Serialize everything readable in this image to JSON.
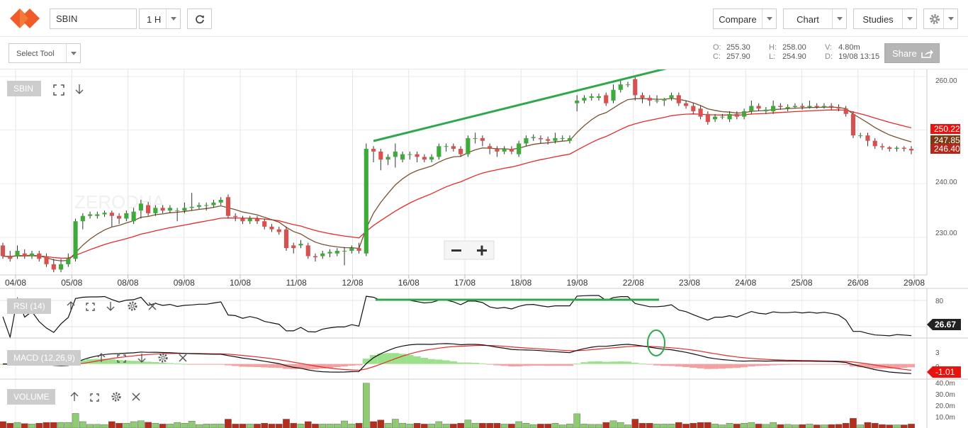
{
  "header": {
    "symbol": "SBIN",
    "interval": "1 H",
    "compare_label": "Compare",
    "chart_label": "Chart",
    "studies_label": "Studies",
    "logo_colors": [
      "#f15a29",
      "#fbb040"
    ]
  },
  "toolbar": {
    "select_tool_label": "Select Tool",
    "share_label": "Share"
  },
  "ohlc": {
    "o_key": "O:",
    "o": "255.30",
    "c_key": "C:",
    "c": "257.90",
    "h_key": "H:",
    "h": "258.00",
    "l_key": "L:",
    "l": "254.90",
    "v_key": "V:",
    "v": "4.80m",
    "d_key": "D:",
    "d": "19/08 13:15"
  },
  "chart_labels": {
    "main_symbol": "SBIN",
    "watermark": "ZERODHA",
    "rsi_label": "RSI (14)",
    "macd_label": "MACD (12,26,9)",
    "volume_label": "VOLUME"
  },
  "colors": {
    "up": "#3daa3a",
    "down": "#d8514e",
    "ema_slow": "#e52b2b",
    "ema_fast": "#7a5230",
    "trendline": "#2ea84a",
    "rsi_badge": "#222222",
    "macd_badge": "#e8130e",
    "vol_up": "#8ecb73",
    "vol_down": "#b52d1b"
  },
  "chart_data": {
    "type": "candlestick",
    "price_axis": {
      "ticks": [
        "260.00",
        "240.00",
        "230.00"
      ],
      "ylim": [
        223,
        261.3
      ]
    },
    "price_badges": [
      "250.22",
      "247.85",
      "246.40"
    ],
    "x_labels": [
      "04/08",
      "05/08",
      "08/08",
      "09/08",
      "10/08",
      "11/08",
      "12/08",
      "16/08",
      "17/08",
      "18/08",
      "19/08",
      "22/08",
      "23/08",
      "24/08",
      "25/08",
      "26/08",
      "29/08"
    ],
    "candles": [
      [
        228.5,
        226.5,
        229.0,
        226.0
      ],
      [
        226.5,
        226.0,
        227.5,
        225.5
      ],
      [
        226.5,
        227.5,
        228.5,
        226.0
      ],
      [
        227.0,
        226.5,
        227.8,
        226.0
      ],
      [
        226.5,
        227.0,
        227.5,
        226.0
      ],
      [
        227.0,
        226.0,
        227.5,
        225.5
      ],
      [
        226.5,
        225.0,
        227.0,
        224.5
      ],
      [
        225.0,
        224.0,
        226.0,
        223.5
      ],
      [
        224.0,
        225.0,
        226.0,
        223.5
      ],
      [
        225.0,
        226.0,
        227.0,
        224.5
      ],
      [
        226.0,
        233.0,
        233.5,
        225.5
      ],
      [
        233.0,
        234.0,
        234.5,
        231.5
      ],
      [
        234.0,
        234.3,
        234.8,
        233.5
      ],
      [
        234.0,
        234.3,
        234.8,
        233.5
      ],
      [
        234.3,
        234.6,
        235.0,
        233.8
      ],
      [
        234.6,
        234.0,
        235.0,
        232.0
      ],
      [
        234.0,
        233.5,
        234.5,
        232.5
      ],
      [
        233.5,
        234.5,
        235.0,
        233.0
      ],
      [
        233.0,
        234.8,
        235.5,
        232.5
      ],
      [
        235.0,
        236.3,
        237.0,
        233.5
      ],
      [
        236.0,
        234.5,
        236.6,
        234.0
      ],
      [
        234.5,
        235.5,
        236.0,
        234.0
      ],
      [
        235.5,
        235.0,
        236.0,
        234.5
      ],
      [
        235.0,
        235.5,
        236.0,
        234.5
      ],
      [
        235.0,
        235.0,
        235.5,
        233.0
      ],
      [
        235.0,
        235.5,
        236.5,
        234.5
      ],
      [
        235.5,
        235.7,
        238.3,
        235.0
      ],
      [
        235.7,
        236.0,
        236.5,
        235.3
      ],
      [
        236.0,
        236.0,
        236.5,
        235.0
      ],
      [
        236.0,
        236.5,
        237.0,
        235.5
      ],
      [
        236.5,
        237.0,
        237.5,
        236.0
      ],
      [
        237.5,
        234.0,
        238.0,
        233.5
      ],
      [
        234.0,
        233.8,
        234.5,
        233.0
      ],
      [
        233.5,
        233.0,
        234.0,
        232.5
      ],
      [
        233.0,
        233.5,
        234.0,
        232.5
      ],
      [
        233.5,
        233.0,
        234.0,
        232.5
      ],
      [
        233.0,
        232.0,
        233.5,
        231.5
      ],
      [
        232.0,
        231.5,
        232.5,
        231.0
      ],
      [
        231.5,
        231.0,
        232.0,
        230.5
      ],
      [
        231.5,
        228.0,
        232.0,
        227.5
      ],
      [
        228.5,
        228.0,
        229.0,
        227.0
      ],
      [
        228.5,
        228.8,
        229.5,
        228.0
      ],
      [
        228.5,
        226.5,
        229.0,
        226.0
      ],
      [
        226.5,
        226.3,
        227.0,
        225.5
      ],
      [
        226.5,
        227.0,
        227.5,
        226.0
      ],
      [
        227.0,
        227.3,
        227.8,
        226.3
      ],
      [
        227.0,
        227.5,
        228.0,
        226.5
      ],
      [
        227.5,
        227.5,
        228.2,
        224.8
      ],
      [
        227.5,
        228.0,
        228.5,
        227.0
      ],
      [
        228.0,
        227.5,
        229.0,
        227.0
      ],
      [
        227.0,
        246.5,
        247.5,
        226.5
      ],
      [
        246.5,
        246.0,
        247.0,
        244.0
      ],
      [
        246.0,
        244.5,
        246.5,
        242.5
      ],
      [
        244.5,
        245.0,
        245.5,
        243.5
      ],
      [
        245.0,
        246.0,
        247.5,
        243.0
      ],
      [
        244.5,
        245.5,
        246.0,
        244.0
      ],
      [
        245.5,
        245.5,
        246.0,
        244.5
      ],
      [
        245.5,
        245.0,
        246.0,
        244.0
      ],
      [
        245.0,
        244.5,
        245.5,
        244.0
      ],
      [
        244.5,
        245.0,
        245.5,
        244.0
      ],
      [
        245.0,
        247.0,
        247.5,
        244.5
      ],
      [
        247.0,
        247.0,
        247.5,
        246.0
      ],
      [
        247.0,
        246.5,
        247.5,
        246.0
      ],
      [
        246.5,
        245.5,
        247.0,
        245.0
      ],
      [
        245.5,
        248.5,
        249.0,
        245.0
      ],
      [
        248.5,
        248.5,
        249.5,
        247.5
      ],
      [
        248.5,
        248.0,
        249.0,
        247.0
      ],
      [
        247.0,
        246.5,
        247.5,
        245.5
      ],
      [
        246.5,
        246.0,
        247.0,
        245.0
      ],
      [
        246.0,
        246.5,
        247.0,
        245.5
      ],
      [
        246.5,
        246.0,
        247.0,
        245.5
      ],
      [
        245.5,
        247.5,
        248.0,
        245.0
      ],
      [
        247.5,
        248.5,
        249.0,
        247.0
      ],
      [
        248.5,
        248.7,
        249.2,
        248.0
      ],
      [
        248.5,
        248.3,
        249.0,
        247.5
      ],
      [
        248.3,
        248.0,
        248.8,
        247.3
      ],
      [
        248.0,
        248.5,
        249.5,
        247.5
      ],
      [
        248.5,
        248.5,
        249.0,
        248.0
      ],
      [
        248.0,
        248.5,
        249.0,
        247.5
      ],
      [
        255.0,
        255.5,
        256.5,
        253.5
      ],
      [
        255.5,
        256.0,
        256.5,
        255.0
      ],
      [
        256.0,
        256.3,
        256.8,
        255.5
      ],
      [
        256.0,
        256.3,
        256.8,
        255.5
      ],
      [
        256.5,
        255.0,
        257.0,
        254.5
      ],
      [
        255.5,
        257.5,
        258.5,
        255.0
      ],
      [
        257.5,
        258.5,
        259.5,
        257.0
      ],
      [
        258.5,
        258.5,
        259.0,
        258.0
      ],
      [
        259.5,
        256.5,
        260.0,
        255.5
      ],
      [
        256.5,
        256.0,
        257.0,
        255.0
      ],
      [
        256.0,
        255.5,
        256.5,
        254.5
      ],
      [
        255.5,
        255.5,
        256.5,
        255.0
      ],
      [
        255.5,
        255.8,
        256.0,
        254.5
      ],
      [
        256.0,
        256.5,
        257.0,
        255.5
      ],
      [
        256.5,
        255.0,
        257.0,
        254.5
      ],
      [
        255.0,
        254.5,
        255.5,
        254.0
      ],
      [
        254.5,
        253.5,
        255.0,
        253.0
      ],
      [
        254.0,
        252.5,
        254.5,
        252.0
      ],
      [
        253.0,
        251.5,
        253.5,
        251.0
      ],
      [
        252.0,
        252.5,
        253.0,
        251.5
      ],
      [
        252.5,
        252.5,
        253.0,
        252.0
      ],
      [
        252.0,
        253.0,
        253.5,
        251.5
      ],
      [
        253.0,
        252.5,
        253.5,
        252.0
      ],
      [
        252.5,
        253.5,
        254.0,
        252.0
      ],
      [
        253.5,
        254.5,
        255.5,
        253.0
      ],
      [
        254.5,
        254.0,
        255.0,
        253.5
      ],
      [
        253.5,
        253.8,
        254.3,
        253.0
      ],
      [
        253.5,
        254.5,
        255.5,
        253.0
      ],
      [
        254.5,
        254.3,
        255.0,
        253.8
      ],
      [
        254.0,
        254.3,
        254.8,
        253.5
      ],
      [
        254.3,
        254.5,
        255.0,
        254.0
      ],
      [
        254.5,
        254.3,
        255.0,
        253.8
      ],
      [
        254.3,
        254.5,
        255.5,
        254.0
      ],
      [
        254.5,
        254.3,
        255.0,
        254.0
      ],
      [
        254.3,
        254.5,
        255.0,
        254.0
      ],
      [
        254.5,
        254.3,
        255.0,
        253.8
      ],
      [
        254.3,
        254.0,
        254.8,
        253.5
      ],
      [
        254.0,
        253.0,
        254.5,
        252.5
      ],
      [
        253.0,
        249.0,
        253.5,
        248.5
      ],
      [
        249.0,
        249.0,
        249.5,
        248.5
      ],
      [
        249.0,
        248.0,
        249.5,
        247.0
      ],
      [
        248.0,
        247.0,
        248.5,
        246.5
      ],
      [
        247.0,
        246.8,
        247.5,
        246.3
      ],
      [
        246.8,
        246.5,
        247.0,
        246.0
      ],
      [
        246.5,
        246.7,
        247.0,
        246.0
      ],
      [
        246.7,
        246.5,
        247.0,
        246.0
      ],
      [
        246.5,
        246.2,
        247.0,
        245.5
      ]
    ],
    "volume_axis": {
      "ticks": [
        "40.0m",
        "30.0m",
        "20.0m",
        "10.0m"
      ],
      "ylim": [
        0,
        48
      ]
    },
    "rsi_axis": {
      "ticks": [
        "80"
      ],
      "ylim": [
        20,
        90
      ],
      "last": "26.67"
    },
    "macd_axis": {
      "ticks": [
        "3",
        "0"
      ],
      "ylim": [
        -3,
        5
      ],
      "last": "-1.01"
    }
  }
}
